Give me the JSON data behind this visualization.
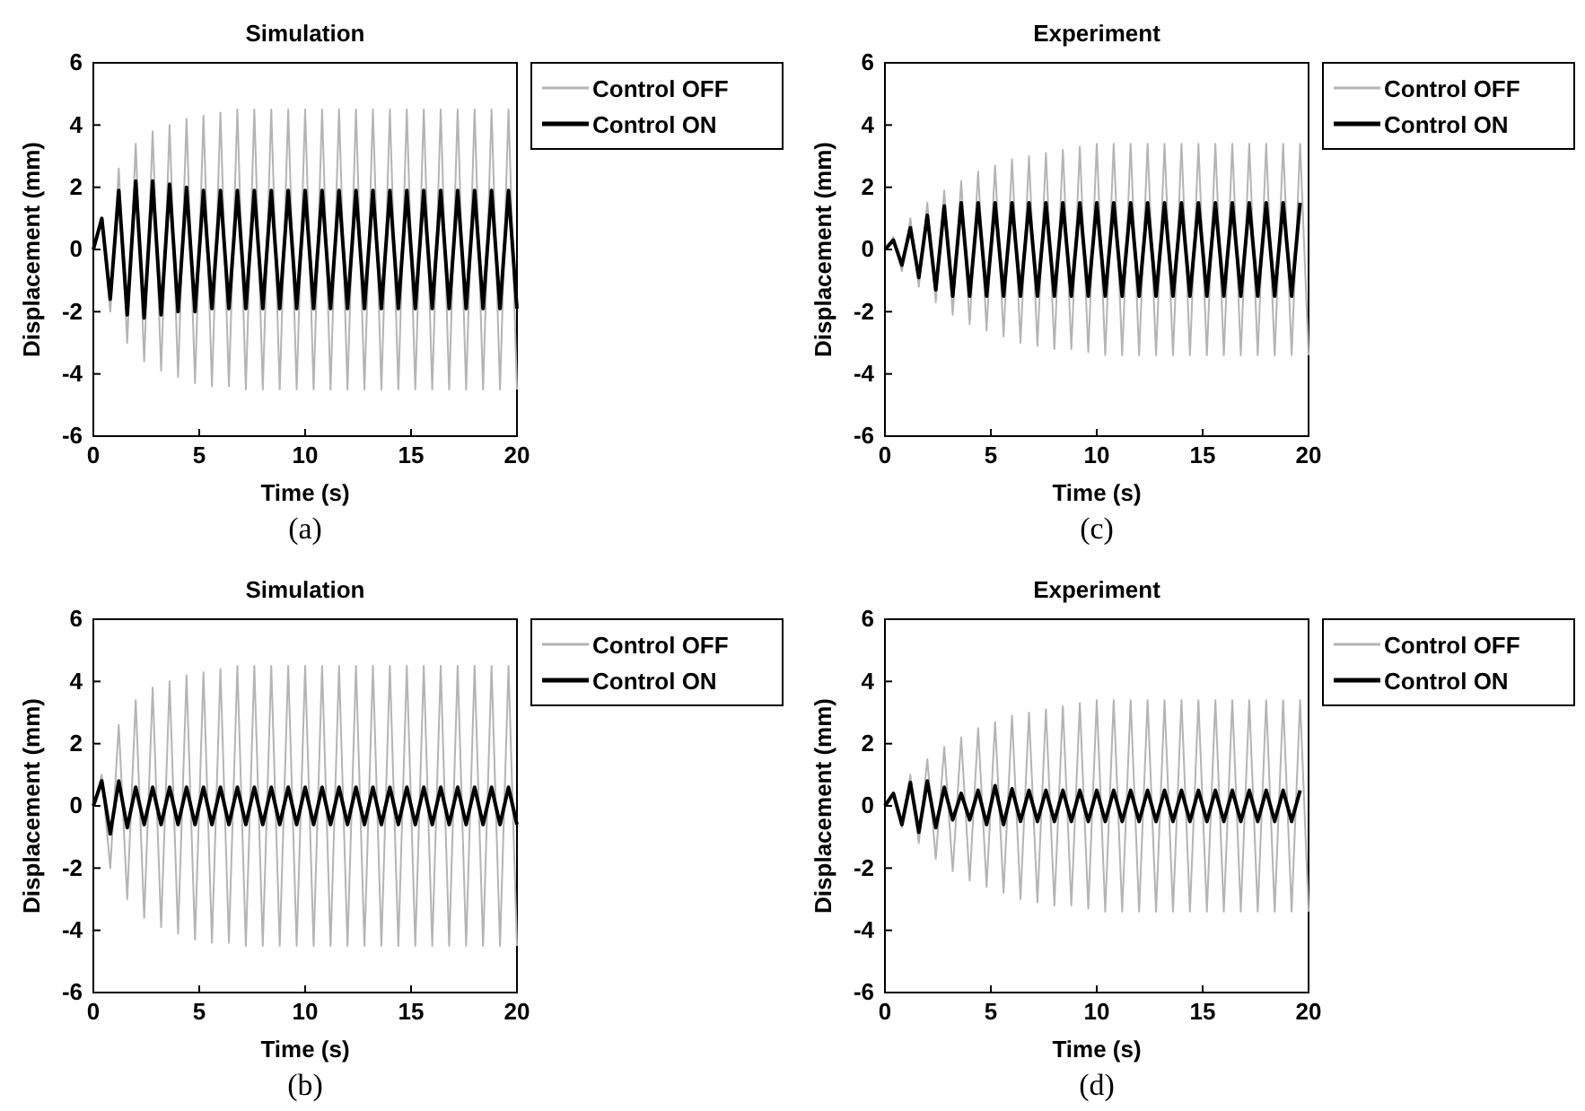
{
  "chart_data": [
    {
      "type": "line",
      "title": "Simulation",
      "xlabel": "Time (s)",
      "ylabel": "Displacement (mm)",
      "annotations": [
        "(a)"
      ],
      "legend": "top right",
      "line_style": "solid",
      "xlim": [
        0,
        20
      ],
      "xticks": [
        0,
        5,
        10,
        15,
        20
      ],
      "ylim": [
        -6,
        6
      ],
      "yticks": [
        -6,
        -4,
        -2,
        0,
        2,
        4,
        6
      ],
      "x": [
        0,
        0.4,
        0.8,
        1.2,
        1.6,
        2,
        2.4,
        2.8,
        3.2,
        3.6,
        4,
        4.4,
        4.8,
        5.2,
        5.6,
        6,
        6.4,
        6.8,
        7.2,
        7.6,
        8,
        8.4,
        8.8,
        9.2,
        9.6,
        10,
        10.4,
        10.8,
        11.2,
        11.6,
        12,
        12.4,
        12.8,
        13.2,
        13.6,
        14,
        14.4,
        14.8,
        15.2,
        15.6,
        16,
        16.4,
        16.8,
        17.2,
        17.6,
        18,
        18.4,
        18.8,
        19.2,
        19.6,
        20
      ],
      "series": [
        {
          "name": "Control OFF",
          "color": "#b4b4b4",
          "values": [
            0,
            1.0,
            -2.0,
            2.6,
            -3.0,
            3.4,
            -3.6,
            3.8,
            -3.9,
            4.0,
            -4.1,
            4.2,
            -4.3,
            4.3,
            -4.4,
            4.4,
            -4.4,
            4.5,
            -4.5,
            4.5,
            -4.5,
            4.5,
            -4.5,
            4.5,
            -4.5,
            4.5,
            -4.5,
            4.5,
            -4.5,
            4.5,
            -4.5,
            4.5,
            -4.5,
            4.5,
            -4.5,
            4.5,
            -4.5,
            4.5,
            -4.5,
            4.5,
            -4.5,
            4.5,
            -4.5,
            4.5,
            -4.5,
            4.5,
            -4.5,
            4.5,
            -4.5,
            4.5,
            -4.5
          ]
        },
        {
          "name": "Control ON",
          "color": "#000000",
          "values": [
            0,
            1.0,
            -1.6,
            1.9,
            -2.1,
            2.2,
            -2.2,
            2.2,
            -2.1,
            2.1,
            -2.0,
            2.0,
            -2.0,
            1.9,
            -1.9,
            1.9,
            -1.9,
            1.9,
            -1.9,
            1.9,
            -1.9,
            1.9,
            -1.9,
            1.9,
            -1.9,
            1.9,
            -1.9,
            1.9,
            -1.9,
            1.9,
            -1.9,
            1.9,
            -1.9,
            1.9,
            -1.9,
            1.9,
            -1.9,
            1.9,
            -1.9,
            1.9,
            -1.9,
            1.9,
            -1.9,
            1.9,
            -1.9,
            1.9,
            -1.9,
            1.9,
            -1.9,
            1.9,
            -1.9
          ]
        }
      ]
    },
    {
      "type": "line",
      "title": "Experiment",
      "xlabel": "Time (s)",
      "ylabel": "Displacement (mm)",
      "annotations": [
        "(c)"
      ],
      "legend": "top right",
      "line_style": "solid",
      "xlim": [
        0,
        20
      ],
      "xticks": [
        0,
        5,
        10,
        15,
        20
      ],
      "ylim": [
        -6,
        6
      ],
      "yticks": [
        -6,
        -4,
        -2,
        0,
        2,
        4,
        6
      ],
      "x": [
        0,
        0.4,
        0.8,
        1.2,
        1.6,
        2,
        2.4,
        2.8,
        3.2,
        3.6,
        4,
        4.4,
        4.8,
        5.2,
        5.6,
        6,
        6.4,
        6.8,
        7.2,
        7.6,
        8,
        8.4,
        8.8,
        9.2,
        9.6,
        10,
        10.4,
        10.8,
        11.2,
        11.6,
        12,
        12.4,
        12.8,
        13.2,
        13.6,
        14,
        14.4,
        14.8,
        15.2,
        15.6,
        16,
        16.4,
        16.8,
        17.2,
        17.6,
        18,
        18.4,
        18.8,
        19.2,
        19.6,
        20
      ],
      "series": [
        {
          "name": "Control OFF",
          "color": "#b4b4b4",
          "values": [
            0,
            0.4,
            -0.7,
            1.0,
            -1.2,
            1.5,
            -1.7,
            1.9,
            -2.1,
            2.2,
            -2.4,
            2.5,
            -2.6,
            2.7,
            -2.8,
            2.9,
            -3.0,
            3.0,
            -3.1,
            3.1,
            -3.2,
            3.2,
            -3.2,
            3.3,
            -3.3,
            3.4,
            -3.4,
            3.4,
            -3.4,
            3.4,
            -3.4,
            3.4,
            -3.4,
            3.4,
            -3.4,
            3.4,
            -3.4,
            3.4,
            -3.4,
            3.4,
            -3.4,
            3.4,
            -3.4,
            3.4,
            -3.4,
            3.4,
            -3.4,
            3.4,
            -3.4,
            3.4,
            -3.4
          ]
        },
        {
          "name": "Control ON",
          "color": "#000000",
          "values": [
            0,
            0.3,
            -0.5,
            0.7,
            -0.9,
            1.1,
            -1.3,
            1.4,
            -1.5,
            1.5,
            -1.5,
            1.5,
            -1.5,
            1.5,
            -1.5,
            1.5,
            -1.5,
            1.5,
            -1.5,
            1.5,
            -1.5,
            1.5,
            -1.5,
            1.5,
            -1.5,
            1.5,
            -1.5,
            1.5,
            -1.5,
            1.5,
            -1.5,
            1.5,
            -1.5,
            1.5,
            -1.5,
            1.5,
            -1.5,
            1.5,
            -1.5,
            1.5,
            -1.5,
            1.5,
            -1.5,
            1.5,
            -1.5,
            1.5,
            -1.5,
            1.5,
            -1.5,
            1.5,
            null
          ]
        }
      ]
    },
    {
      "type": "line",
      "title": "Simulation",
      "xlabel": "Time (s)",
      "ylabel": "Displacement (mm)",
      "annotations": [
        "(b)"
      ],
      "legend": "top right",
      "line_style": "solid",
      "xlim": [
        0,
        20
      ],
      "xticks": [
        0,
        5,
        10,
        15,
        20
      ],
      "ylim": [
        -6,
        6
      ],
      "yticks": [
        -6,
        -4,
        -2,
        0,
        2,
        4,
        6
      ],
      "x": [
        0,
        0.4,
        0.8,
        1.2,
        1.6,
        2,
        2.4,
        2.8,
        3.2,
        3.6,
        4,
        4.4,
        4.8,
        5.2,
        5.6,
        6,
        6.4,
        6.8,
        7.2,
        7.6,
        8,
        8.4,
        8.8,
        9.2,
        9.6,
        10,
        10.4,
        10.8,
        11.2,
        11.6,
        12,
        12.4,
        12.8,
        13.2,
        13.6,
        14,
        14.4,
        14.8,
        15.2,
        15.6,
        16,
        16.4,
        16.8,
        17.2,
        17.6,
        18,
        18.4,
        18.8,
        19.2,
        19.6,
        20
      ],
      "series": [
        {
          "name": "Control OFF",
          "color": "#b4b4b4",
          "values": [
            0,
            1.0,
            -2.0,
            2.6,
            -3.0,
            3.4,
            -3.6,
            3.8,
            -3.9,
            4.0,
            -4.1,
            4.2,
            -4.3,
            4.3,
            -4.4,
            4.4,
            -4.4,
            4.5,
            -4.5,
            4.5,
            -4.5,
            4.5,
            -4.5,
            4.5,
            -4.5,
            4.5,
            -4.5,
            4.5,
            -4.5,
            4.5,
            -4.5,
            4.5,
            -4.5,
            4.5,
            -4.5,
            4.5,
            -4.5,
            4.5,
            -4.5,
            4.5,
            -4.5,
            4.5,
            -4.5,
            4.5,
            -4.5,
            4.5,
            -4.5,
            4.5,
            -4.5,
            4.5,
            -4.5
          ]
        },
        {
          "name": "Control ON",
          "color": "#000000",
          "values": [
            0,
            0.8,
            -0.9,
            0.8,
            -0.7,
            0.6,
            -0.6,
            0.6,
            -0.6,
            0.6,
            -0.6,
            0.6,
            -0.6,
            0.6,
            -0.6,
            0.6,
            -0.6,
            0.6,
            -0.6,
            0.6,
            -0.6,
            0.6,
            -0.6,
            0.6,
            -0.6,
            0.6,
            -0.6,
            0.6,
            -0.6,
            0.6,
            -0.6,
            0.6,
            -0.6,
            0.6,
            -0.6,
            0.6,
            -0.6,
            0.6,
            -0.6,
            0.6,
            -0.6,
            0.6,
            -0.6,
            0.6,
            -0.6,
            0.6,
            -0.6,
            0.6,
            -0.6,
            0.6,
            -0.6
          ]
        }
      ]
    },
    {
      "type": "line",
      "title": "Experiment",
      "xlabel": "Time (s)",
      "ylabel": "Displacement (mm)",
      "annotations": [
        "(d)"
      ],
      "legend": "top right",
      "line_style": "solid",
      "xlim": [
        0,
        20
      ],
      "xticks": [
        0,
        5,
        10,
        15,
        20
      ],
      "ylim": [
        -6,
        6
      ],
      "yticks": [
        -6,
        -4,
        -2,
        0,
        2,
        4,
        6
      ],
      "x": [
        0,
        0.4,
        0.8,
        1.2,
        1.6,
        2,
        2.4,
        2.8,
        3.2,
        3.6,
        4,
        4.4,
        4.8,
        5.2,
        5.6,
        6,
        6.4,
        6.8,
        7.2,
        7.6,
        8,
        8.4,
        8.8,
        9.2,
        9.6,
        10,
        10.4,
        10.8,
        11.2,
        11.6,
        12,
        12.4,
        12.8,
        13.2,
        13.6,
        14,
        14.4,
        14.8,
        15.2,
        15.6,
        16,
        16.4,
        16.8,
        17.2,
        17.6,
        18,
        18.4,
        18.8,
        19.2,
        19.6,
        20
      ],
      "series": [
        {
          "name": "Control OFF",
          "color": "#b4b4b4",
          "values": [
            0,
            0.4,
            -0.7,
            1.0,
            -1.2,
            1.5,
            -1.7,
            1.9,
            -2.1,
            2.2,
            -2.4,
            2.5,
            -2.6,
            2.7,
            -2.8,
            2.9,
            -3.0,
            3.0,
            -3.1,
            3.1,
            -3.2,
            3.2,
            -3.2,
            3.3,
            -3.3,
            3.4,
            -3.4,
            3.4,
            -3.4,
            3.4,
            -3.4,
            3.4,
            -3.4,
            3.4,
            -3.4,
            3.4,
            -3.4,
            3.4,
            -3.4,
            3.4,
            -3.4,
            3.4,
            -3.4,
            3.4,
            -3.4,
            3.4,
            -3.4,
            3.4,
            -3.4,
            3.4,
            -3.4
          ]
        },
        {
          "name": "Control ON",
          "color": "#000000",
          "values": [
            0,
            0.4,
            -0.6,
            0.75,
            -0.85,
            0.8,
            -0.7,
            0.6,
            -0.45,
            0.4,
            -0.45,
            0.5,
            -0.6,
            0.65,
            -0.6,
            0.55,
            -0.5,
            0.5,
            -0.5,
            0.5,
            -0.5,
            0.5,
            -0.5,
            0.5,
            -0.5,
            0.5,
            -0.5,
            0.5,
            -0.5,
            0.5,
            -0.5,
            0.5,
            -0.5,
            0.5,
            -0.5,
            0.5,
            -0.5,
            0.5,
            -0.5,
            0.5,
            -0.5,
            0.5,
            -0.5,
            0.5,
            -0.5,
            0.5,
            -0.5,
            0.5,
            -0.5,
            0.5,
            null
          ]
        }
      ]
    }
  ]
}
